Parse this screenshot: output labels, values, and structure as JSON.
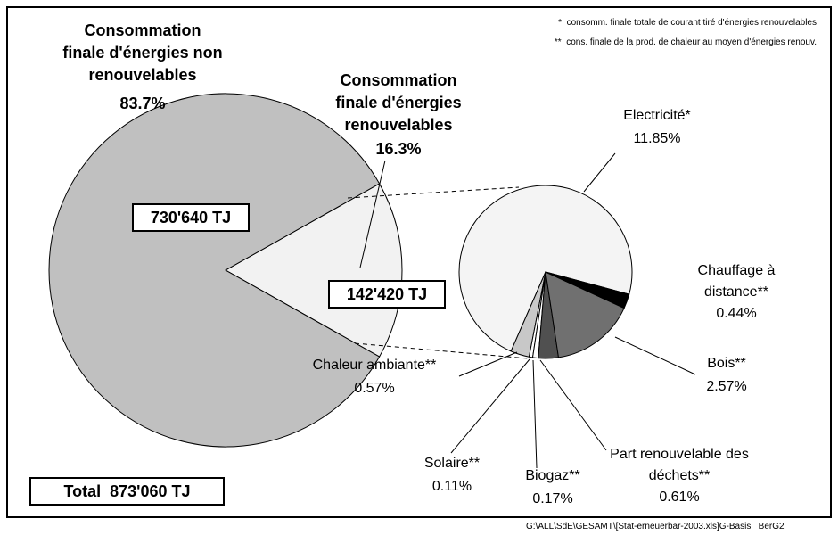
{
  "chart_data": [
    {
      "type": "pie",
      "categories": [
        "Consommation finale d'énergies non renouvelables",
        "Consommation finale d'énergies renouvelables"
      ],
      "values": [
        83.7,
        16.3
      ],
      "value_labels": [
        "83.7%",
        "16.3%"
      ],
      "colors": [
        "#c0c0c0",
        "#f2f2f2"
      ],
      "amount_labels": [
        "730'640 TJ",
        "142'420 TJ"
      ],
      "total_label": "Total  873'060 TJ"
    },
    {
      "type": "pie",
      "categories": [
        "Chauffage à distance**",
        "Bois**",
        "Part renouvelable des déchets**",
        "Biogaz**",
        "Solaire**",
        "Chaleur ambiante**",
        "Electricité*"
      ],
      "values": [
        0.44,
        2.57,
        0.61,
        0.17,
        0.11,
        0.57,
        11.85
      ],
      "value_labels": [
        "0.44%",
        "2.57%",
        "0.61%",
        "0.17%",
        "0.11%",
        "0.57%",
        "11.85%"
      ],
      "colors": [
        "#000000",
        "#707070",
        "#505050",
        "#ffffff",
        "#ffffff",
        "#c8c8c8",
        "#f4f4f4"
      ]
    }
  ],
  "footnotes": [
    "*  consomm. finale totale de courant tiré d'énergies renouvelables",
    "**  cons. finale de la prod. de chaleur au moyen d'énergies renouv."
  ],
  "footer": "G:\\ALL\\SdE\\GESAMT\\[Stat-erneuerbar-2003.xls]G-Basis   BerG2"
}
